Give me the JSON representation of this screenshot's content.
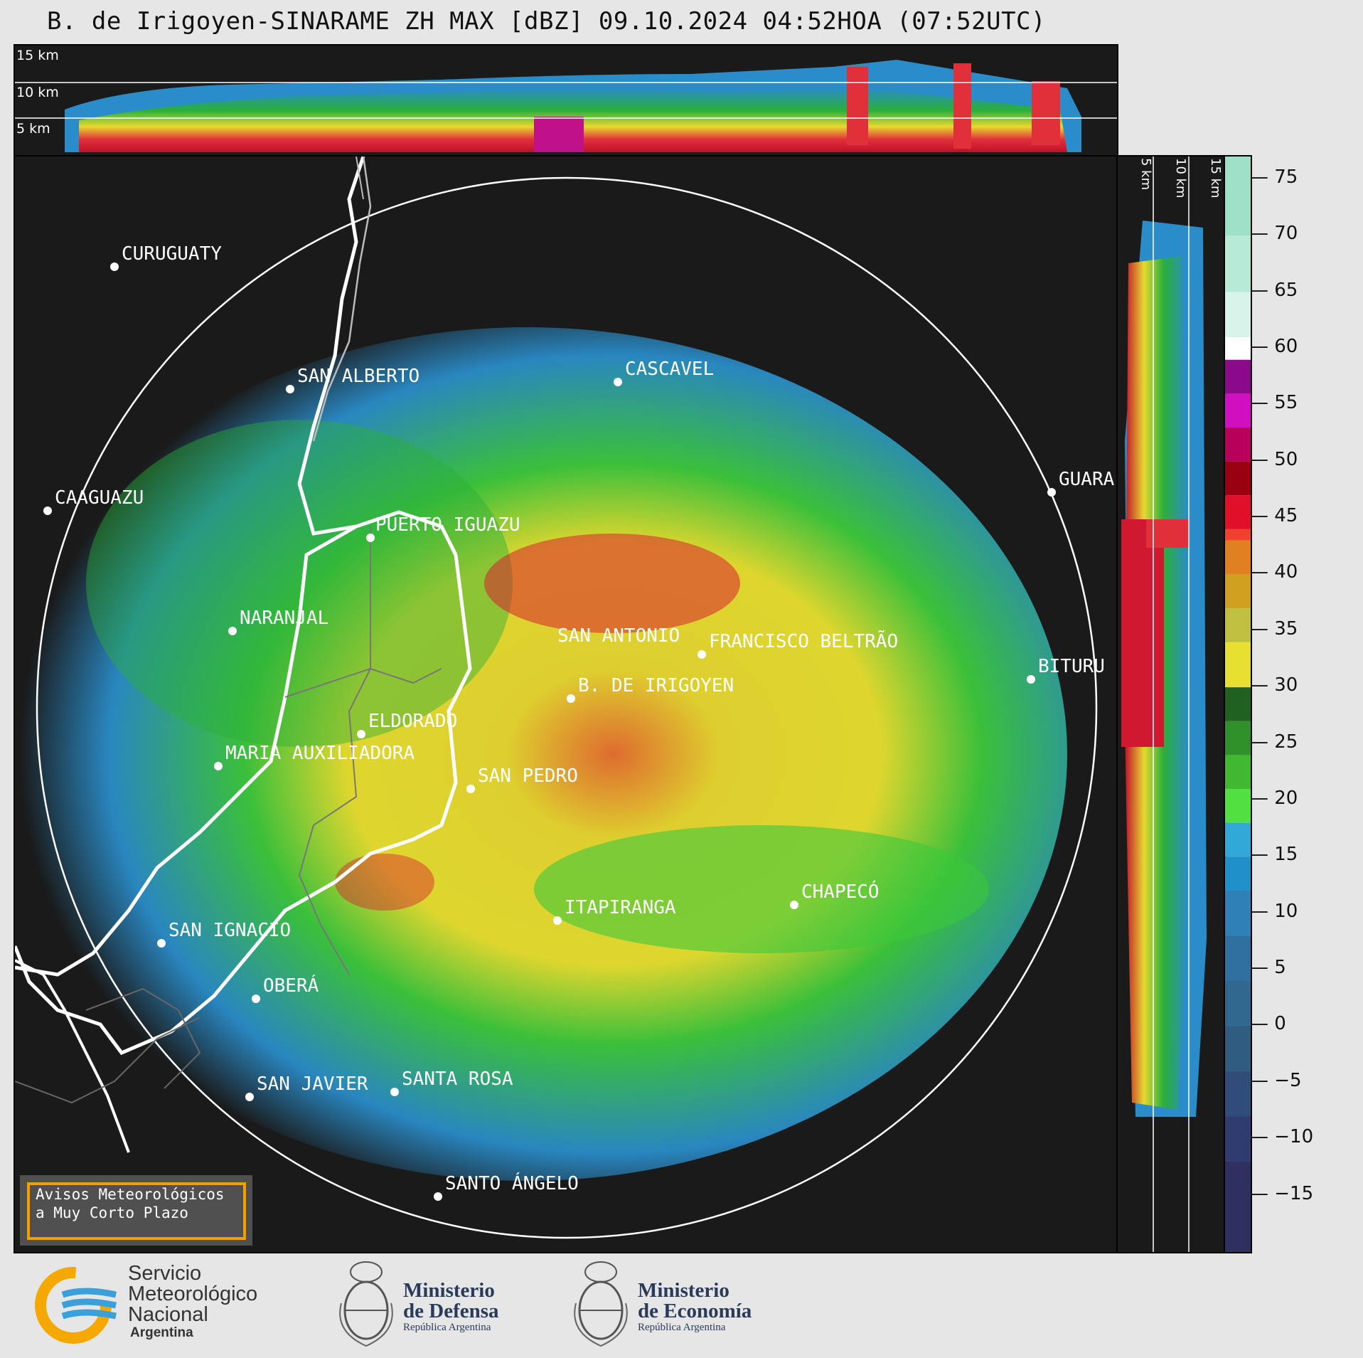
{
  "header": {
    "title": "B. de Irigoyen-SINARAME ZH MAX [dBZ] 09.10.2024 04:52HOA (07:52UTC)"
  },
  "top_profile": {
    "height_labels": [
      "15 km",
      "10 km",
      "5 km"
    ]
  },
  "side_profile": {
    "height_labels": [
      "5 km",
      "10 km",
      "15 km"
    ]
  },
  "colorbar": {
    "unit": "dBZ",
    "ticks": [
      "75",
      "70",
      "65",
      "60",
      "55",
      "50",
      "45",
      "40",
      "35",
      "30",
      "25",
      "20",
      "15",
      "10",
      "5",
      "0",
      "−5",
      "−10",
      "−15"
    ]
  },
  "map": {
    "cities": [
      {
        "name": "CURUGUATY"
      },
      {
        "name": "SAN ALBERTO"
      },
      {
        "name": "CASCAVEL"
      },
      {
        "name": "CAAGUAZU"
      },
      {
        "name": "GUARA"
      },
      {
        "name": "PUERTO IGUAZU"
      },
      {
        "name": "NARANJAL"
      },
      {
        "name": "SAN ANTONIO"
      },
      {
        "name": "FRANCISCO BELTRÃO"
      },
      {
        "name": "BITURU"
      },
      {
        "name": "B. DE IRIGOYEN"
      },
      {
        "name": "ELDORADO"
      },
      {
        "name": "MARIA AUXILIADORA"
      },
      {
        "name": "SAN PEDRO"
      },
      {
        "name": "CHAPECÓ"
      },
      {
        "name": "ITAPIRANGA"
      },
      {
        "name": "SAN IGNACIO"
      },
      {
        "name": "OBERÁ"
      },
      {
        "name": "SAN JAVIER"
      },
      {
        "name": "SANTA ROSA"
      },
      {
        "name": "SANTO ÁNGELO"
      }
    ]
  },
  "warning_box": {
    "line1": "Avisos Meteorológicos",
    "line2": "a Muy Corto Plazo"
  },
  "footer": {
    "smn": {
      "line1": "Servicio",
      "line2": "Meteorológico",
      "line3": "Nacional",
      "line4": "Argentina"
    },
    "defensa": {
      "line1": "Ministerio",
      "line2": "de Defensa",
      "sub": "República Argentina"
    },
    "economia": {
      "line1": "Ministerio",
      "line2": "de Economía",
      "sub": "República Argentina"
    }
  },
  "colors": {
    "background": "#1a1a1a",
    "warning_border": "#f0a000",
    "smn_orange": "#f5a800",
    "smn_blue": "#3aa0dc"
  }
}
